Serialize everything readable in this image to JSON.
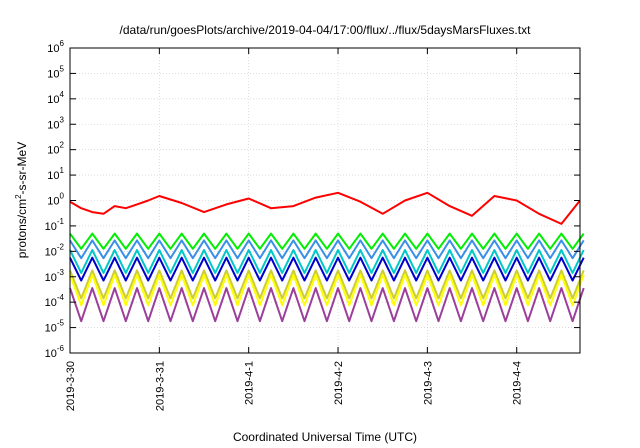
{
  "chart_data": {
    "type": "line",
    "title": "/data/run/goesPlots/archive/2019-04-04/17:00/flux/../flux/5daysMarsFluxes.txt",
    "xlabel": "Coordinated Universal Time (UTC)",
    "ylabel": {
      "prefix": "protons/cm",
      "sup": "2",
      "suffix": "-s-sr-MeV"
    },
    "y_scale": "log",
    "ylim": [
      1e-06,
      1000000.0
    ],
    "y_ticks": [
      {
        "base": "10",
        "exp": "-6",
        "value": 1e-06
      },
      {
        "base": "10",
        "exp": "-5",
        "value": 1e-05
      },
      {
        "base": "10",
        "exp": "-4",
        "value": 0.0001
      },
      {
        "base": "10",
        "exp": "-3",
        "value": 0.001
      },
      {
        "base": "10",
        "exp": "-2",
        "value": 0.01
      },
      {
        "base": "10",
        "exp": "-1",
        "value": 0.1
      },
      {
        "base": "10",
        "exp": "0",
        "value": 1
      },
      {
        "base": "10",
        "exp": "1",
        "value": 10
      },
      {
        "base": "10",
        "exp": "2",
        "value": 100
      },
      {
        "base": "10",
        "exp": "3",
        "value": 1000
      },
      {
        "base": "10",
        "exp": "4",
        "value": 10000
      },
      {
        "base": "10",
        "exp": "5",
        "value": 100000
      },
      {
        "base": "10",
        "exp": "6",
        "value": 1000000
      }
    ],
    "xlim": [
      "2019-03-30",
      "2019-04-04T17:00"
    ],
    "x_ticks": [
      "2019-3-30",
      "2019-3-31",
      "2019-4-1",
      "2019-4-2",
      "2019-4-3",
      "2019-4-4"
    ],
    "grid": true,
    "legend": "none",
    "series": [
      {
        "color": "#ff0000",
        "x": [
          "2019-03-30T00:00",
          "2019-03-30T03:00",
          "2019-03-30T06:00",
          "2019-03-30T09:00",
          "2019-03-30T12:00",
          "2019-03-30T15:00",
          "2019-03-30T18:00",
          "2019-03-30T21:00",
          "2019-03-31T00:00",
          "2019-03-31T06:00",
          "2019-03-31T12:00",
          "2019-03-31T18:00",
          "2019-04-01T00:00",
          "2019-04-01T06:00",
          "2019-04-01T12:00",
          "2019-04-01T18:00",
          "2019-04-02T00:00",
          "2019-04-02T06:00",
          "2019-04-02T12:00",
          "2019-04-02T18:00",
          "2019-04-03T00:00",
          "2019-04-03T06:00",
          "2019-04-03T12:00",
          "2019-04-03T18:00",
          "2019-04-04T00:00",
          "2019-04-04T06:00",
          "2019-04-04T12:00",
          "2019-04-04T17:00"
        ],
        "y": [
          0.9,
          0.5,
          0.35,
          0.3,
          0.6,
          0.5,
          0.7,
          1.0,
          1.5,
          0.8,
          0.35,
          0.7,
          1.2,
          0.5,
          0.6,
          1.3,
          2.0,
          0.9,
          0.3,
          1.0,
          2.0,
          0.6,
          0.25,
          1.5,
          1.0,
          0.3,
          0.12,
          1.0
        ]
      },
      {
        "color": "#00ee00",
        "base": 0.025,
        "amp": 0.6
      },
      {
        "color": "#3a8fe8",
        "base": 0.012,
        "amp": 0.7
      },
      {
        "color": "#00c8c8",
        "base": 0.004,
        "amp": 0.9
      },
      {
        "color": "#0000cc",
        "base": 0.002,
        "amp": 0.9
      },
      {
        "color": "#cccc33",
        "base": 0.0005,
        "amp": 1.1
      },
      {
        "color": "#ffff00",
        "base": 0.0003,
        "amp": 1.2
      },
      {
        "color": "#9b3f9b",
        "base": 8e-05,
        "amp": 1.3
      }
    ]
  }
}
